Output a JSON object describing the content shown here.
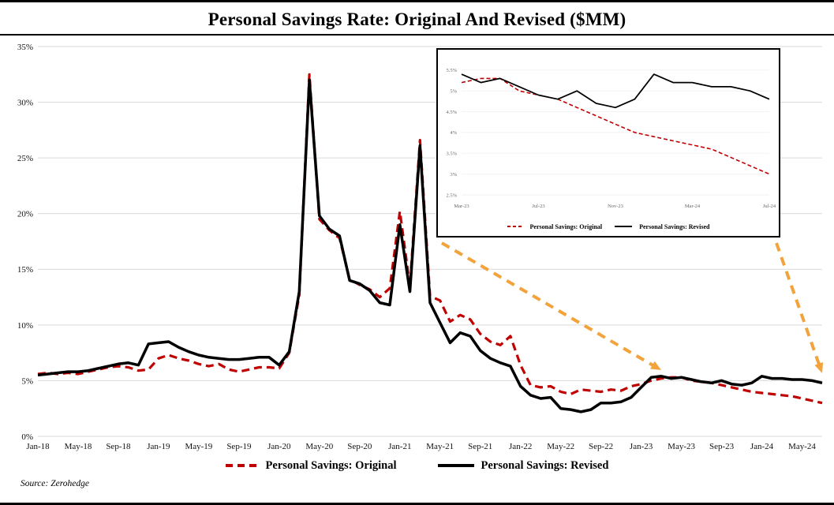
{
  "source": "Source: Zerohedge",
  "chart_data": {
    "type": "line",
    "title": "Personal Savings Rate: Original And Revised ($MM)",
    "xlabel": "",
    "ylabel": "",
    "ylim": [
      0,
      35
    ],
    "ytick_step": 5,
    "ytick_format": "percent",
    "grid": "horizontal",
    "legend_position": "bottom",
    "x_tick_every": 4,
    "x": [
      "Jan-18",
      "Feb-18",
      "Mar-18",
      "Apr-18",
      "May-18",
      "Jun-18",
      "Jul-18",
      "Aug-18",
      "Sep-18",
      "Oct-18",
      "Nov-18",
      "Dec-18",
      "Jan-19",
      "Feb-19",
      "Mar-19",
      "Apr-19",
      "May-19",
      "Jun-19",
      "Jul-19",
      "Aug-19",
      "Sep-19",
      "Oct-19",
      "Nov-19",
      "Dec-19",
      "Jan-20",
      "Feb-20",
      "Mar-20",
      "Apr-20",
      "May-20",
      "Jun-20",
      "Jul-20",
      "Aug-20",
      "Sep-20",
      "Oct-20",
      "Nov-20",
      "Dec-20",
      "Jan-21",
      "Feb-21",
      "Mar-21",
      "Apr-21",
      "May-21",
      "Jun-21",
      "Jul-21",
      "Aug-21",
      "Sep-21",
      "Oct-21",
      "Nov-21",
      "Dec-21",
      "Jan-22",
      "Feb-22",
      "Mar-22",
      "Apr-22",
      "May-22",
      "Jun-22",
      "Jul-22",
      "Aug-22",
      "Sep-22",
      "Oct-22",
      "Nov-22",
      "Dec-22",
      "Jan-23",
      "Feb-23",
      "Mar-23",
      "Apr-23",
      "May-23",
      "Jun-23",
      "Jul-23",
      "Aug-23",
      "Sep-23",
      "Oct-23",
      "Nov-23",
      "Dec-23",
      "Jan-24",
      "Feb-24",
      "Mar-24",
      "Apr-24",
      "May-24",
      "Jun-24",
      "Jul-24"
    ],
    "series": [
      {
        "name": "Personal Savings: Original",
        "color": "#C00000",
        "line_style": "dashed",
        "values": [
          5.6,
          5.7,
          5.6,
          5.7,
          5.6,
          5.8,
          6.0,
          6.2,
          6.3,
          6.2,
          5.9,
          6.0,
          7.0,
          7.3,
          7.0,
          6.8,
          6.5,
          6.3,
          6.5,
          6.0,
          5.8,
          6.0,
          6.2,
          6.2,
          6.1,
          7.5,
          12.7,
          32.5,
          19.5,
          18.5,
          17.8,
          14.1,
          13.6,
          13.2,
          12.5,
          13.3,
          20.2,
          13.5,
          26.6,
          12.6,
          12.2,
          10.3,
          10.9,
          10.5,
          9.2,
          8.5,
          8.2,
          9.0,
          6.4,
          4.6,
          4.4,
          4.5,
          4.0,
          3.8,
          4.2,
          4.1,
          4.0,
          4.2,
          4.1,
          4.5,
          4.7,
          5.0,
          5.2,
          5.3,
          5.3,
          5.0,
          4.9,
          4.8,
          4.6,
          4.4,
          4.2,
          4.0,
          3.9,
          3.8,
          3.7,
          3.6,
          3.4,
          3.2,
          3.0
        ]
      },
      {
        "name": "Personal Savings: Revised",
        "color": "#000000",
        "line_style": "solid",
        "values": [
          5.5,
          5.6,
          5.7,
          5.8,
          5.8,
          5.9,
          6.1,
          6.3,
          6.5,
          6.6,
          6.4,
          8.3,
          8.4,
          8.5,
          8.0,
          7.6,
          7.3,
          7.1,
          7.0,
          6.9,
          6.9,
          7.0,
          7.1,
          7.1,
          6.4,
          7.6,
          13.0,
          32.0,
          19.8,
          18.6,
          18.0,
          14.0,
          13.7,
          13.1,
          12.0,
          11.8,
          19.0,
          13.0,
          26.1,
          12.0,
          10.2,
          8.4,
          9.3,
          9.0,
          7.7,
          7.0,
          6.6,
          6.3,
          4.5,
          3.7,
          3.4,
          3.5,
          2.5,
          2.4,
          2.2,
          2.4,
          3.0,
          3.0,
          3.1,
          3.5,
          4.4,
          5.3,
          5.4,
          5.2,
          5.3,
          5.1,
          4.9,
          4.8,
          5.0,
          4.7,
          4.6,
          4.8,
          5.4,
          5.2,
          5.2,
          5.1,
          5.1,
          5.0,
          4.8
        ]
      }
    ],
    "inset": {
      "description": "zoomed view of recent period",
      "start_index": 62,
      "start_label": "Mar-23",
      "end_label": "Jul-24",
      "ylim": [
        2.5,
        5.8
      ],
      "ytick_step": 0.5,
      "x_tick_every": 4
    },
    "arrow_color": "#F2A33C"
  }
}
